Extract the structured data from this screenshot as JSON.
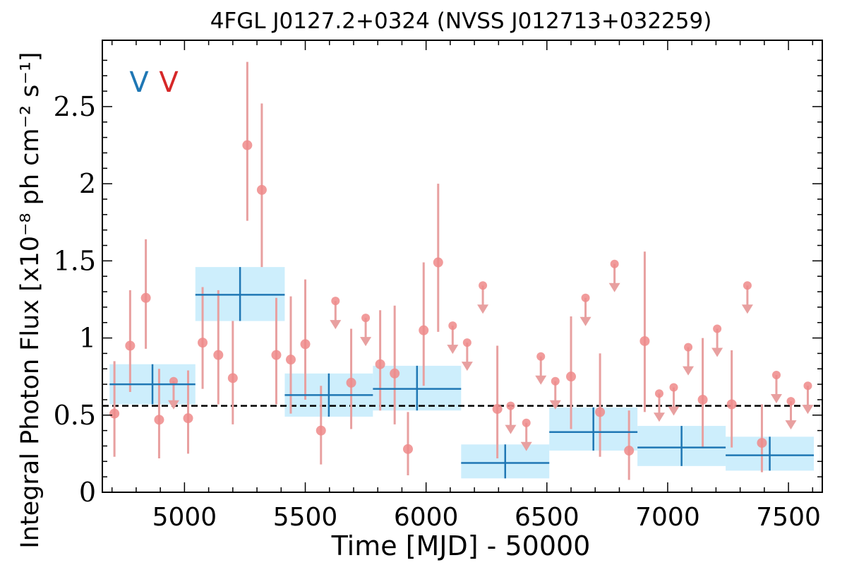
{
  "chart_data": {
    "type": "scatter",
    "title": "4FGL J0127.2+0324 (NVSS J012713+032259)",
    "xlabel": "Time [MJD] - 50000",
    "ylabel": "Integral Photon Flux [x10⁻⁸ ph cm⁻² s⁻¹]",
    "xlim": [
      4660,
      7640
    ],
    "ylim": [
      0,
      2.93
    ],
    "x_ticks": [
      5000,
      5500,
      6000,
      6500,
      7000,
      7500
    ],
    "x_tick_labels": [
      "5000",
      "5500",
      "6000",
      "6500",
      "7000",
      "7500"
    ],
    "y_ticks": [
      0,
      0.5,
      1,
      1.5,
      2,
      2.5
    ],
    "y_tick_labels": [
      "0",
      "0.5",
      "1",
      "1.5",
      "2",
      "2.5"
    ],
    "markers": [
      {
        "text": "V",
        "color": "#1f77b4"
      },
      {
        "text": "V",
        "color": "#d62728"
      }
    ],
    "mean_flux": 0.56,
    "colors": {
      "bin_fill": "#cdeefc",
      "bin_line": "#1f77b4",
      "point": "#ef8a8a",
      "errorbar": "#e8a0a0",
      "mean_line": "#000000"
    },
    "series": [
      {
        "kind": "long_bins",
        "bins": [
          {
            "x0": 4690,
            "x1": 5045,
            "y": 0.7,
            "ylo": 0.57,
            "yhi": 0.83
          },
          {
            "x0": 5045,
            "x1": 5415,
            "y": 1.28,
            "ylo": 1.11,
            "yhi": 1.46
          },
          {
            "x0": 5415,
            "x1": 5780,
            "y": 0.63,
            "ylo": 0.49,
            "yhi": 0.77
          },
          {
            "x0": 5780,
            "x1": 6145,
            "y": 0.67,
            "ylo": 0.53,
            "yhi": 0.82
          },
          {
            "x0": 6145,
            "x1": 6510,
            "y": 0.19,
            "ylo": 0.09,
            "yhi": 0.31
          },
          {
            "x0": 6510,
            "x1": 6875,
            "y": 0.39,
            "ylo": 0.27,
            "yhi": 0.55
          },
          {
            "x0": 6875,
            "x1": 7240,
            "y": 0.29,
            "ylo": 0.17,
            "yhi": 0.43
          },
          {
            "x0": 7240,
            "x1": 7605,
            "y": 0.24,
            "ylo": 0.14,
            "yhi": 0.36
          }
        ]
      },
      {
        "kind": "short_bins",
        "detections": [
          {
            "x": 4710,
            "y": 0.51,
            "lo": 0.23,
            "hi": 0.85
          },
          {
            "x": 4775,
            "y": 0.95,
            "lo": 0.65,
            "hi": 1.31
          },
          {
            "x": 4840,
            "y": 1.26,
            "lo": 0.93,
            "hi": 1.64
          },
          {
            "x": 4895,
            "y": 0.47,
            "lo": 0.22,
            "hi": 0.8
          },
          {
            "x": 5015,
            "y": 0.48,
            "lo": 0.25,
            "hi": 0.79
          },
          {
            "x": 5075,
            "y": 0.97,
            "lo": 0.67,
            "hi": 1.33
          },
          {
            "x": 5140,
            "y": 0.89,
            "lo": 0.57,
            "hi": 1.31
          },
          {
            "x": 5200,
            "y": 0.74,
            "lo": 0.44,
            "hi": 1.11
          },
          {
            "x": 5260,
            "y": 2.25,
            "lo": 1.76,
            "hi": 2.79
          },
          {
            "x": 5320,
            "y": 1.96,
            "lo": 1.46,
            "hi": 2.52
          },
          {
            "x": 5380,
            "y": 0.89,
            "lo": 0.57,
            "hi": 1.26
          },
          {
            "x": 5440,
            "y": 0.86,
            "lo": 0.51,
            "hi": 1.27
          },
          {
            "x": 5500,
            "y": 0.96,
            "lo": 0.6,
            "hi": 1.38
          },
          {
            "x": 5565,
            "y": 0.4,
            "lo": 0.18,
            "hi": 0.69
          },
          {
            "x": 5690,
            "y": 0.71,
            "lo": 0.41,
            "hi": 1.06
          },
          {
            "x": 5810,
            "y": 0.83,
            "lo": 0.53,
            "hi": 1.18
          },
          {
            "x": 5870,
            "y": 0.77,
            "lo": 0.44,
            "hi": 1.21
          },
          {
            "x": 5925,
            "y": 0.28,
            "lo": 0.11,
            "hi": 0.52
          },
          {
            "x": 5990,
            "y": 1.05,
            "lo": 0.69,
            "hi": 1.49
          },
          {
            "x": 6050,
            "y": 1.49,
            "lo": 1.04,
            "hi": 2.0
          },
          {
            "x": 6295,
            "y": 0.54,
            "lo": 0.22,
            "hi": 0.95
          },
          {
            "x": 6600,
            "y": 0.75,
            "lo": 0.41,
            "hi": 1.14
          },
          {
            "x": 6720,
            "y": 0.52,
            "lo": 0.23,
            "hi": 0.9
          },
          {
            "x": 6840,
            "y": 0.27,
            "lo": 0.08,
            "hi": 0.53
          },
          {
            "x": 6905,
            "y": 0.98,
            "lo": 0.52,
            "hi": 1.56
          },
          {
            "x": 7145,
            "y": 0.6,
            "lo": 0.29,
            "hi": 1.0
          },
          {
            "x": 7265,
            "y": 0.57,
            "lo": 0.29,
            "hi": 0.92
          },
          {
            "x": 7390,
            "y": 0.32,
            "lo": 0.13,
            "hi": 0.57
          }
        ],
        "upper_limits": [
          {
            "x": 4955,
            "y": 0.72
          },
          {
            "x": 5625,
            "y": 1.24
          },
          {
            "x": 5750,
            "y": 1.13
          },
          {
            "x": 6110,
            "y": 1.08
          },
          {
            "x": 6170,
            "y": 0.97
          },
          {
            "x": 6235,
            "y": 1.34
          },
          {
            "x": 6350,
            "y": 0.56
          },
          {
            "x": 6415,
            "y": 0.45
          },
          {
            "x": 6475,
            "y": 0.88
          },
          {
            "x": 6535,
            "y": 0.72
          },
          {
            "x": 6660,
            "y": 1.26
          },
          {
            "x": 6780,
            "y": 1.48
          },
          {
            "x": 6965,
            "y": 0.64
          },
          {
            "x": 7025,
            "y": 0.68
          },
          {
            "x": 7085,
            "y": 0.94
          },
          {
            "x": 7205,
            "y": 1.06
          },
          {
            "x": 7330,
            "y": 1.34
          },
          {
            "x": 7450,
            "y": 0.76
          },
          {
            "x": 7510,
            "y": 0.59
          },
          {
            "x": 7580,
            "y": 0.69
          }
        ]
      }
    ]
  }
}
